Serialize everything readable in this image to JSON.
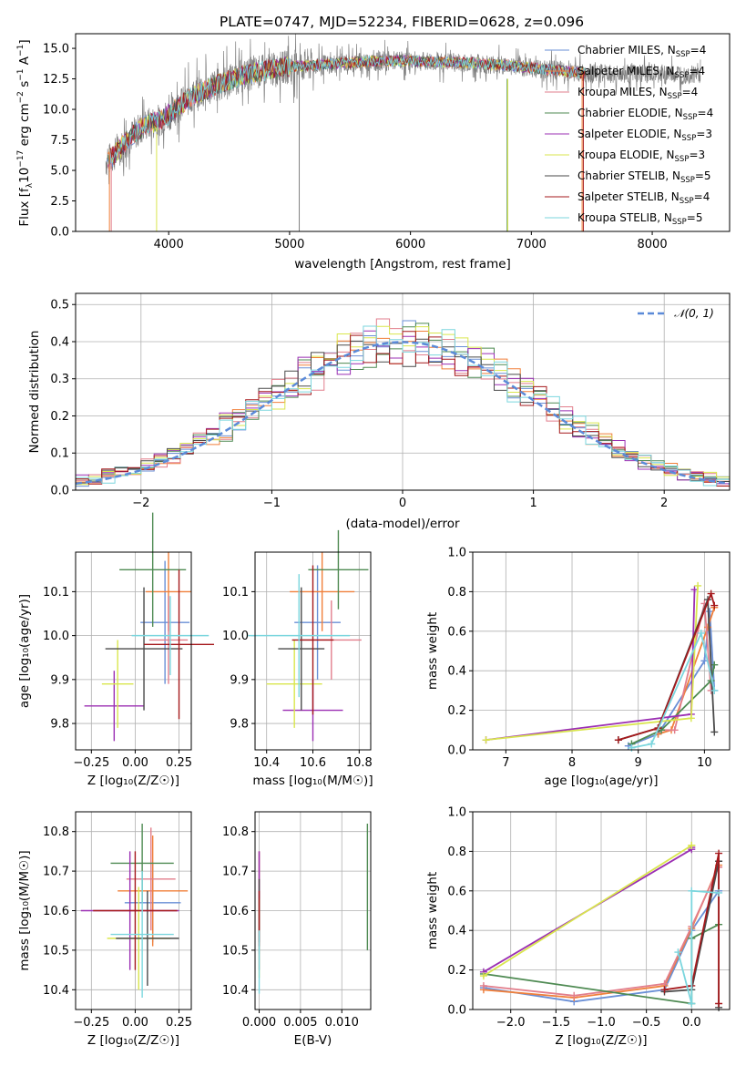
{
  "colors": [
    "#6a8fd6",
    "#f07f3a",
    "#e27e8c",
    "#4e8a52",
    "#9b2fb3",
    "#d9e64d",
    "#4a4a4a",
    "#a5191c",
    "#7bd6de"
  ],
  "chart_data": [
    {
      "id": "spectrum",
      "type": "line",
      "title": "PLATE=0747, MJD=52234, FIBERID=0628, z=0.096",
      "xlabel": "wavelength [Angstrom, rest frame]",
      "ylabel": "Flux [f_λ10^-17 erg cm^-2 s^-1 A^-1]",
      "xlim": [
        3230,
        8640
      ],
      "ylim": [
        0,
        16.2
      ],
      "xticks": [
        "4000",
        "5000",
        "6000",
        "7000",
        "8000"
      ],
      "yticks": [
        "0.0",
        "2.5",
        "5.0",
        "7.5",
        "10.0",
        "12.5",
        "15.0"
      ],
      "grid": false,
      "legend_position": "upper-right",
      "legend": [
        {
          "pre": "Chabrier MILES, N",
          "sub": "SSP",
          "post": "=4"
        },
        {
          "pre": "Salpeter MILES, N",
          "sub": "SSP",
          "post": "=4"
        },
        {
          "pre": "Kroupa MILES, N",
          "sub": "SSP",
          "post": "=4"
        },
        {
          "pre": "Chabrier ELODIE, N",
          "sub": "SSP",
          "post": "=4"
        },
        {
          "pre": "Salpeter ELODIE, N",
          "sub": "SSP",
          "post": "=3"
        },
        {
          "pre": "Kroupa ELODIE, N",
          "sub": "SSP",
          "post": "=3"
        },
        {
          "pre": "Chabrier STELIB, N",
          "sub": "SSP",
          "post": "=5"
        },
        {
          "pre": "Salpeter STELIB, N",
          "sub": "SSP",
          "post": "=4"
        },
        {
          "pre": "Kroupa STELIB, N",
          "sub": "SSP",
          "post": "=5"
        }
      ],
      "data_trend": {
        "wavelength": [
          3500,
          3600,
          3700,
          3800,
          3900,
          4000,
          4100,
          4200,
          4300,
          4400,
          4500,
          4700,
          5000,
          5300,
          5600,
          5900,
          6200,
          6500,
          6800,
          7100,
          7400,
          7600
        ],
        "flux": [
          5.8,
          6.8,
          7.9,
          8.7,
          9.0,
          9.6,
          10.4,
          11.1,
          11.6,
          12.0,
          12.4,
          13.0,
          13.5,
          13.7,
          13.9,
          14.0,
          13.9,
          13.8,
          13.6,
          13.3,
          13.0,
          12.9
        ]
      }
    },
    {
      "id": "residuals",
      "type": "histogram",
      "xlabel": "(data-model)/error",
      "ylabel": "Normed distribution",
      "xlim": [
        -2.5,
        2.5
      ],
      "ylim": [
        0,
        0.53
      ],
      "xticks": [
        "−2",
        "−1",
        "0",
        "1",
        "2"
      ],
      "yticks": [
        "0.0",
        "0.1",
        "0.2",
        "0.3",
        "0.4",
        "0.5"
      ],
      "grid": true,
      "legend": "𝒩(0, 1)",
      "legend_position": "upper-right",
      "bin_width": 0.1
    },
    {
      "id": "age_vs_Z",
      "type": "errorbar",
      "xlabel": "Z [log₁₀(Z/Z☉)]",
      "ylabel": "age  [log₁₀(age/yr)]",
      "xlim": [
        -0.34,
        0.32
      ],
      "ylim": [
        9.74,
        10.19
      ],
      "xticks": [
        "−0.25",
        "0.00",
        "0.25"
      ],
      "yticks": [
        "9.8",
        "9.9",
        "10.0",
        "10.1"
      ],
      "grid": true,
      "points": [
        {
          "x": 0.17,
          "y": 10.03,
          "xerr": 0.14,
          "yerr": 0.14
        },
        {
          "x": 0.19,
          "y": 10.1,
          "xerr": 0.13,
          "yerr": 0.09
        },
        {
          "x": 0.19,
          "y": 9.99,
          "xerr": 0.11,
          "yerr": 0.1
        },
        {
          "x": 0.1,
          "y": 10.15,
          "xerr": 0.19,
          "yerr": 0.13
        },
        {
          "x": -0.12,
          "y": 9.84,
          "xerr": 0.17,
          "yerr": 0.08
        },
        {
          "x": -0.1,
          "y": 9.89,
          "xerr": 0.09,
          "yerr": 0.1
        },
        {
          "x": 0.05,
          "y": 9.97,
          "xerr": 0.22,
          "yerr": 0.14
        },
        {
          "x": 0.25,
          "y": 9.98,
          "xerr": 0.2,
          "yerr": 0.17
        },
        {
          "x": 0.2,
          "y": 10.0,
          "xerr": 0.22,
          "yerr": 0.09
        }
      ]
    },
    {
      "id": "age_vs_mass",
      "type": "errorbar",
      "xlabel": "mass [log₁₀(M/M☉)]",
      "xlim": [
        10.35,
        10.85
      ],
      "ylim": [
        9.74,
        10.19
      ],
      "xticks": [
        "10.4",
        "10.6",
        "10.8"
      ],
      "yticks": [
        "9.8",
        "9.9",
        "10.0",
        "10.1"
      ],
      "grid": true,
      "points": [
        {
          "x": 10.62,
          "y": 10.03,
          "xerr": 0.1,
          "yerr": 0.13
        },
        {
          "x": 10.64,
          "y": 10.1,
          "xerr": 0.14,
          "yerr": 0.09
        },
        {
          "x": 10.68,
          "y": 9.99,
          "xerr": 0.13,
          "yerr": 0.09
        },
        {
          "x": 10.71,
          "y": 10.15,
          "xerr": 0.13,
          "yerr": 0.09
        },
        {
          "x": 10.6,
          "y": 9.83,
          "xerr": 0.13,
          "yerr": 0.07
        },
        {
          "x": 10.52,
          "y": 9.89,
          "xerr": 0.12,
          "yerr": 0.1
        },
        {
          "x": 10.55,
          "y": 9.97,
          "xerr": 0.1,
          "yerr": 0.14
        },
        {
          "x": 10.6,
          "y": 9.99,
          "xerr": 0.09,
          "yerr": 0.17
        },
        {
          "x": 10.54,
          "y": 10.0,
          "xerr": 0.22,
          "yerr": 0.14
        }
      ]
    },
    {
      "id": "weight_vs_age",
      "type": "line",
      "xlabel": "age  [log₁₀(age/yr)]",
      "ylabel": "mass weight",
      "xlim": [
        6.5,
        10.38
      ],
      "ylim": [
        0,
        1.0
      ],
      "xticks": [
        "7",
        "8",
        "9",
        "10"
      ],
      "yticks": [
        "0.0",
        "0.2",
        "0.4",
        "0.6",
        "0.8",
        "1.0"
      ],
      "grid": true,
      "series": [
        {
          "x": [
            8.85,
            9.3,
            10.0,
            10.08,
            10.15
          ],
          "y": [
            0.02,
            0.08,
            0.45,
            0.7,
            0.3
          ]
        },
        {
          "x": [
            9.3,
            9.5,
            10.05,
            10.15
          ],
          "y": [
            0.08,
            0.1,
            0.62,
            0.72
          ]
        },
        {
          "x": [
            9.3,
            9.55,
            10.0,
            10.1
          ],
          "y": [
            0.1,
            0.1,
            0.74,
            0.3
          ]
        },
        {
          "x": [
            8.9,
            9.35,
            10.1,
            10.15
          ],
          "y": [
            0.03,
            0.1,
            0.35,
            0.43
          ]
        },
        {
          "x": [
            6.7,
            9.8,
            9.85
          ],
          "y": [
            0.05,
            0.18,
            0.81
          ]
        },
        {
          "x": [
            6.7,
            9.8,
            9.9
          ],
          "y": [
            0.05,
            0.16,
            0.83
          ]
        },
        {
          "x": [
            8.7,
            9.3,
            10.05,
            10.15
          ],
          "y": [
            0.05,
            0.11,
            0.76,
            0.09
          ]
        },
        {
          "x": [
            8.7,
            9.3,
            10.1,
            10.15
          ],
          "y": [
            0.05,
            0.11,
            0.79,
            0.73
          ]
        },
        {
          "x": [
            8.9,
            9.2,
            9.95,
            10.15
          ],
          "y": [
            0.01,
            0.03,
            0.59,
            0.3
          ]
        }
      ]
    },
    {
      "id": "mass_vs_Z",
      "type": "errorbar",
      "xlabel": "Z [log₁₀(Z/Z☉)]",
      "ylabel": "mass [log₁₀(M/M☉)]",
      "xlim": [
        -0.34,
        0.32
      ],
      "ylim": [
        10.35,
        10.85
      ],
      "xticks": [
        "−0.25",
        "0.00",
        "0.25"
      ],
      "yticks": [
        "10.4",
        "10.5",
        "10.6",
        "10.7",
        "10.8"
      ],
      "grid": true,
      "points": [
        {
          "x": 0.1,
          "y": 10.62,
          "xerr": 0.16,
          "yerr": 0.1
        },
        {
          "x": 0.1,
          "y": 10.65,
          "xerr": 0.2,
          "yerr": 0.14
        },
        {
          "x": 0.09,
          "y": 10.68,
          "xerr": 0.14,
          "yerr": 0.13
        },
        {
          "x": 0.04,
          "y": 10.72,
          "xerr": 0.18,
          "yerr": 0.1
        },
        {
          "x": -0.03,
          "y": 10.6,
          "xerr": 0.28,
          "yerr": 0.15
        },
        {
          "x": 0.02,
          "y": 10.53,
          "xerr": 0.18,
          "yerr": 0.13
        },
        {
          "x": 0.07,
          "y": 10.53,
          "xerr": 0.18,
          "yerr": 0.12
        },
        {
          "x": 0.0,
          "y": 10.6,
          "xerr": 0.24,
          "yerr": 0.15
        },
        {
          "x": 0.04,
          "y": 10.54,
          "xerr": 0.18,
          "yerr": 0.16
        }
      ]
    },
    {
      "id": "mass_vs_EBV",
      "type": "errorbar",
      "xlabel": "E(B-V)",
      "xlim": [
        -0.0005,
        0.0135
      ],
      "ylim": [
        10.35,
        10.85
      ],
      "xticks": [
        "0.000",
        "0.005",
        "0.010"
      ],
      "yticks": [
        "10.4",
        "10.5",
        "10.6",
        "10.7",
        "10.8"
      ],
      "grid": true,
      "points": [
        {
          "x": 0.0,
          "y": 10.62,
          "xerr": 0,
          "yerr": 0.13
        },
        {
          "x": 0.0,
          "y": 10.65,
          "xerr": 0,
          "yerr": 0.1
        },
        {
          "x": 0.0,
          "y": 10.68,
          "xerr": 0,
          "yerr": 0.07
        },
        {
          "x": 0.0131,
          "y": 10.66,
          "xerr": 0,
          "yerr": 0.16
        },
        {
          "x": 0.0,
          "y": 10.6,
          "xerr": 0,
          "yerr": 0.15
        },
        {
          "x": 0.0,
          "y": 10.53,
          "xerr": 0,
          "yerr": 0.1
        },
        {
          "x": 0.0,
          "y": 10.6,
          "xerr": 0,
          "yerr": 0.08
        },
        {
          "x": 0.0,
          "y": 10.58,
          "xerr": 0,
          "yerr": 0.07
        },
        {
          "x": 0.0,
          "y": 10.47,
          "xerr": 0,
          "yerr": 0.08
        }
      ]
    },
    {
      "id": "weight_vs_Z",
      "type": "line",
      "xlabel": "Z [log₁₀(Z/Z☉)]",
      "ylabel": "mass weight",
      "xlim": [
        -2.42,
        0.42
      ],
      "ylim": [
        0,
        1.0
      ],
      "xticks": [
        "−2.0",
        "−1.5",
        "−1.0",
        "−0.5",
        "0.0"
      ],
      "yticks": [
        "0.0",
        "0.2",
        "0.4",
        "0.6",
        "0.8",
        "1.0"
      ],
      "grid": true,
      "series": [
        {
          "x": [
            -2.3,
            -1.3,
            -0.3,
            0.0,
            0.3
          ],
          "y": [
            0.11,
            0.04,
            0.1,
            0.4,
            0.6
          ]
        },
        {
          "x": [
            -2.3,
            -1.3,
            -0.3,
            0.0,
            0.3
          ],
          "y": [
            0.1,
            0.06,
            0.12,
            0.41,
            0.73
          ]
        },
        {
          "x": [
            -2.3,
            -1.3,
            -0.3,
            0.0,
            0.3
          ],
          "y": [
            0.12,
            0.07,
            0.13,
            0.42,
            0.72
          ]
        },
        {
          "x": [
            -2.3,
            0.0,
            0.0,
            0.3
          ],
          "y": [
            0.18,
            0.03,
            0.36,
            0.43
          ]
        },
        {
          "x": [
            -2.3,
            0.0,
            0.0
          ],
          "y": [
            0.19,
            0.81,
            0.82
          ]
        },
        {
          "x": [
            -2.3,
            0.0,
            0.0
          ],
          "y": [
            0.17,
            0.83,
            0.83
          ]
        },
        {
          "x": [
            -0.3,
            0.0,
            0.3,
            0.3
          ],
          "y": [
            0.09,
            0.1,
            0.75,
            0.01
          ]
        },
        {
          "x": [
            -0.3,
            0.0,
            0.3,
            0.3
          ],
          "y": [
            0.1,
            0.12,
            0.79,
            0.03
          ]
        },
        {
          "x": [
            -0.15,
            0.0,
            0.0,
            0.3
          ],
          "y": [
            0.29,
            0.03,
            0.6,
            0.59
          ]
        }
      ]
    }
  ]
}
